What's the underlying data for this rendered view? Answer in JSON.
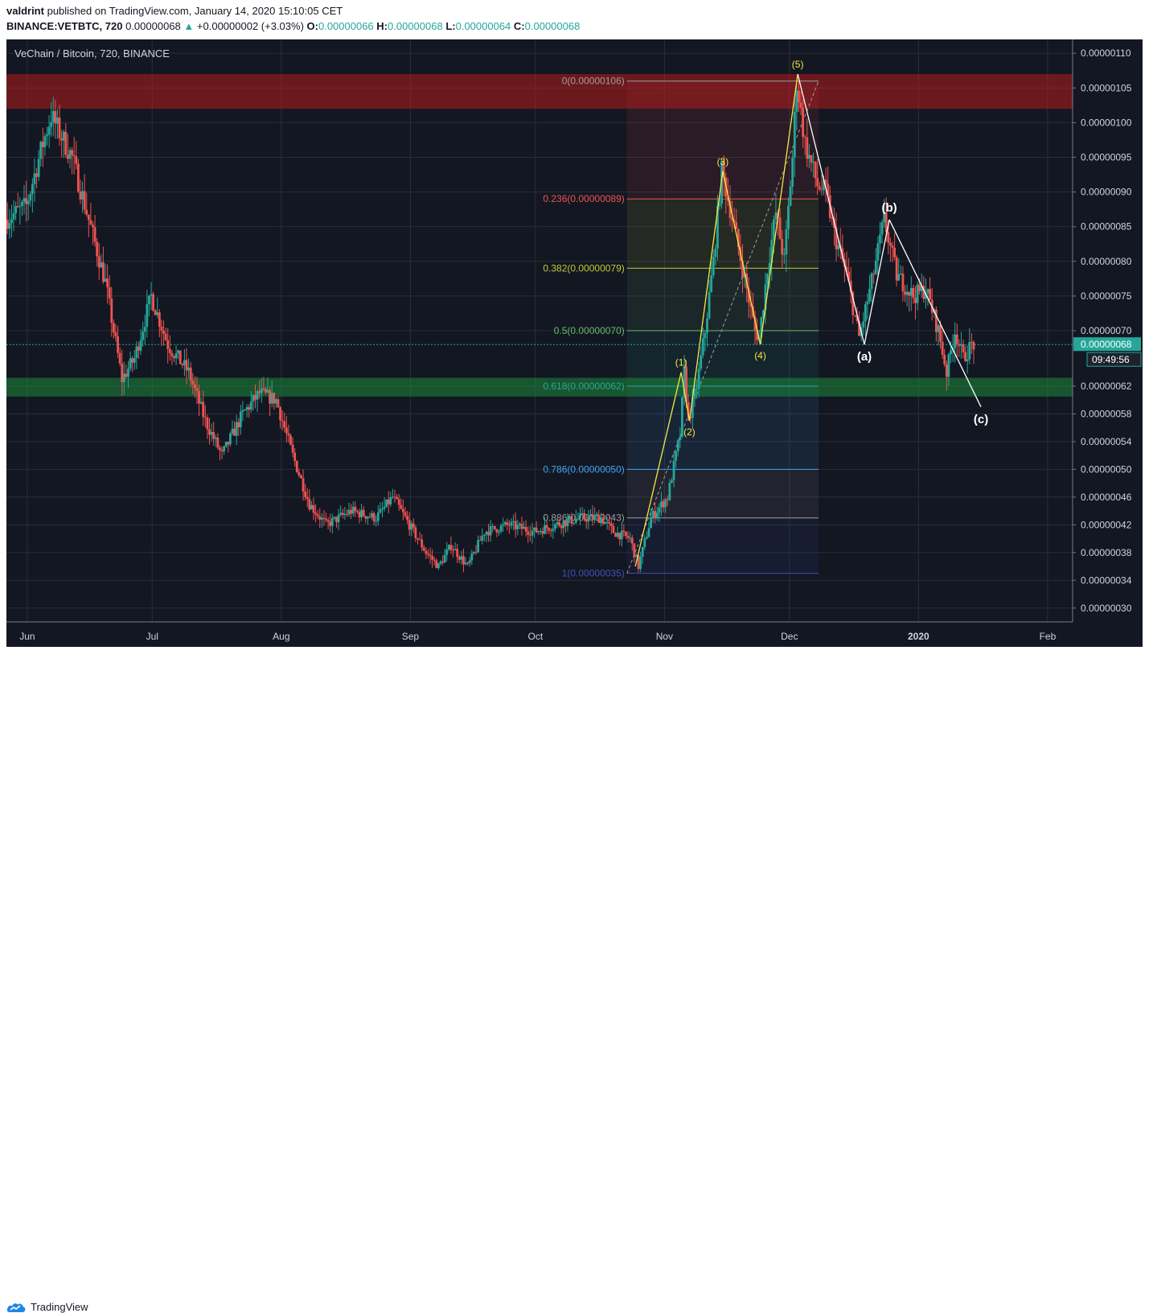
{
  "header": {
    "publisher": "valdrint",
    "published_text": "published on TradingView.com, January 14, 2020 15:10:05 CET",
    "symbol_line": "BINANCE:VETBTC, 720",
    "last": "0.00000068",
    "change": "+0.00000002 (+3.03%)",
    "o_label": "O:",
    "o_value": "0.00000066",
    "h_label": "H:",
    "h_value": "0.00000068",
    "l_label": "L:",
    "l_value": "0.00000064",
    "c_label": "C:",
    "c_value": "0.00000068"
  },
  "footer": {
    "brand": "TradingView"
  },
  "colors": {
    "background": "#131722",
    "grid": "#2a2e39",
    "up": "#26a69a",
    "down": "#ef5350",
    "resistance_zone": "#b71c1c",
    "support_zone": "#1b8a3a",
    "wave_lines": "#f5e942",
    "abc_lines": "#ffffff"
  },
  "chart_data": {
    "type": "candlestick",
    "title": "VeChain / Bitcoin, 720, BINANCE",
    "x_tick_labels": [
      "Jun",
      "Jul",
      "Aug",
      "Sep",
      "Oct",
      "Nov",
      "Dec",
      "2020",
      "Feb"
    ],
    "x_ticks": [
      "2019-06-01",
      "2019-07-01",
      "2019-08-01",
      "2019-09-01",
      "2019-10-01",
      "2019-11-01",
      "2019-12-01",
      "2020-01-01",
      "2020-02-01"
    ],
    "x_range": [
      "2019-05-27",
      "2020-02-07"
    ],
    "ylim": [
      2.8e-07,
      1.12e-06
    ],
    "y_tick_labels": [
      "0.00000110",
      "0.00000105",
      "0.00000100",
      "0.00000095",
      "0.00000090",
      "0.00000085",
      "0.00000080",
      "0.00000075",
      "0.00000070",
      "0.00000062",
      "0.00000058",
      "0.00000054",
      "0.00000050",
      "0.00000046",
      "0.00000042",
      "0.00000038",
      "0.00000034",
      "0.00000030"
    ],
    "y_ticks": [
      1.1e-06,
      1.05e-06,
      1e-06,
      9.5e-07,
      9e-07,
      8.5e-07,
      8e-07,
      7.5e-07,
      7e-07,
      6.2e-07,
      5.8e-07,
      5.4e-07,
      5e-07,
      4.6e-07,
      4.2e-07,
      3.8e-07,
      3.4e-07,
      3e-07
    ],
    "last_price": {
      "value": 6.8e-07,
      "label": "0.00000068",
      "countdown": "09:49:56"
    },
    "price_path": [
      [
        "2019-05-27",
        8.6e-07
      ],
      [
        "2019-06-01",
        8.8e-07
      ],
      [
        "2019-06-05",
        9.7e-07
      ],
      [
        "2019-06-07",
        1.01e-06
      ],
      [
        "2019-06-12",
        9.5e-07
      ],
      [
        "2019-06-16",
        8.6e-07
      ],
      [
        "2019-06-20",
        7.7e-07
      ],
      [
        "2019-06-24",
        6.3e-07
      ],
      [
        "2019-06-27",
        6.6e-07
      ],
      [
        "2019-07-01",
        7.5e-07
      ],
      [
        "2019-07-05",
        6.8e-07
      ],
      [
        "2019-07-10",
        6.4e-07
      ],
      [
        "2019-07-14",
        5.7e-07
      ],
      [
        "2019-07-18",
        5.2e-07
      ],
      [
        "2019-07-23",
        5.8e-07
      ],
      [
        "2019-07-27",
        6.1e-07
      ],
      [
        "2019-07-31",
        6e-07
      ],
      [
        "2019-08-04",
        5.2e-07
      ],
      [
        "2019-08-08",
        4.5e-07
      ],
      [
        "2019-08-12",
        4.2e-07
      ],
      [
        "2019-08-18",
        4.4e-07
      ],
      [
        "2019-08-24",
        4.3e-07
      ],
      [
        "2019-08-28",
        4.6e-07
      ],
      [
        "2019-09-01",
        4.2e-07
      ],
      [
        "2019-09-05",
        3.8e-07
      ],
      [
        "2019-09-08",
        3.6e-07
      ],
      [
        "2019-09-11",
        3.9e-07
      ],
      [
        "2019-09-15",
        3.6e-07
      ],
      [
        "2019-09-19",
        4.1e-07
      ],
      [
        "2019-09-25",
        4.2e-07
      ],
      [
        "2019-10-01",
        4.1e-07
      ],
      [
        "2019-10-06",
        4.2e-07
      ],
      [
        "2019-10-12",
        4.3e-07
      ],
      [
        "2019-10-17",
        4.3e-07
      ],
      [
        "2019-10-20",
        4.1e-07
      ],
      [
        "2019-10-24",
        4e-07
      ],
      [
        "2019-10-26",
        3.6e-07
      ],
      [
        "2019-10-29",
        4.3e-07
      ],
      [
        "2019-11-02",
        4.6e-07
      ],
      [
        "2019-11-05",
        5.5e-07
      ],
      [
        "2019-11-06",
        6.4e-07
      ],
      [
        "2019-11-07",
        5.7e-07
      ],
      [
        "2019-11-09",
        6.2e-07
      ],
      [
        "2019-11-11",
        7e-07
      ],
      [
        "2019-11-13",
        8e-07
      ],
      [
        "2019-11-15",
        9.3e-07
      ],
      [
        "2019-11-18",
        8.5e-07
      ],
      [
        "2019-11-20",
        7.9e-07
      ],
      [
        "2019-11-23",
        7e-07
      ],
      [
        "2019-11-24",
        6.9e-07
      ],
      [
        "2019-11-26",
        7.9e-07
      ],
      [
        "2019-11-28",
        8.7e-07
      ],
      [
        "2019-11-30",
        8e-07
      ],
      [
        "2019-12-02",
        9.5e-07
      ],
      [
        "2019-12-03",
        1.06e-06
      ],
      [
        "2019-12-05",
        9.7e-07
      ],
      [
        "2019-12-08",
        9.1e-07
      ],
      [
        "2019-12-10",
        9e-07
      ],
      [
        "2019-12-12",
        8.4e-07
      ],
      [
        "2019-12-15",
        7.8e-07
      ],
      [
        "2019-12-18",
        6.9e-07
      ],
      [
        "2019-12-21",
        7.7e-07
      ],
      [
        "2019-12-24",
        8.6e-07
      ],
      [
        "2019-12-27",
        7.8e-07
      ],
      [
        "2019-12-31",
        7.5e-07
      ],
      [
        "2020-01-03",
        7.6e-07
      ],
      [
        "2020-01-06",
        7e-07
      ],
      [
        "2020-01-08",
        6.4e-07
      ],
      [
        "2020-01-10",
        7e-07
      ],
      [
        "2020-01-12",
        6.6e-07
      ],
      [
        "2020-01-14",
        6.8e-07
      ]
    ],
    "fib_retracement": {
      "from_date": "2019-10-23",
      "to_date": "2019-12-08",
      "levels": [
        {
          "label": "0(0.00000106)",
          "price": 1.06e-06,
          "color": "#9e9e9e"
        },
        {
          "label": "0.236(0.00000089)",
          "price": 8.9e-07,
          "color": "#ef5350"
        },
        {
          "label": "0.382(0.00000079)",
          "price": 7.9e-07,
          "color": "#c0ca33"
        },
        {
          "label": "0.5(0.00000070)",
          "price": 7e-07,
          "color": "#66bb6a"
        },
        {
          "label": "0.618(0.00000062)",
          "price": 6.2e-07,
          "color": "#26a69a"
        },
        {
          "label": "0.786(0.00000050)",
          "price": 5e-07,
          "color": "#42a5f5"
        },
        {
          "label": "0.886(0.00000043)",
          "price": 4.3e-07,
          "color": "#9e9e9e"
        },
        {
          "label": "1(0.00000035)",
          "price": 3.5e-07,
          "color": "#3f51b5"
        }
      ]
    },
    "zones": [
      {
        "name": "resistance",
        "from": 1.02e-06,
        "to": 1.07e-06
      },
      {
        "name": "support",
        "from": 6.05e-07,
        "to": 6.32e-07
      }
    ],
    "impulse_wave": {
      "labels": [
        "(1)",
        "(2)",
        "(3)",
        "(4)",
        "(5)"
      ],
      "points": [
        [
          "2019-10-25",
          3.6e-07
        ],
        [
          "2019-11-05",
          6.4e-07
        ],
        [
          "2019-11-07",
          5.7e-07
        ],
        [
          "2019-11-15",
          9.3e-07
        ],
        [
          "2019-11-24",
          6.8e-07
        ],
        [
          "2019-12-03",
          1.07e-06
        ]
      ]
    },
    "corrective_wave": {
      "labels": [
        "(a)",
        "(b)",
        "(c)"
      ],
      "points": [
        [
          "2019-12-03",
          1.07e-06
        ],
        [
          "2019-12-19",
          6.8e-07
        ],
        [
          "2019-12-25",
          8.6e-07
        ],
        [
          "2020-01-16",
          5.9e-07
        ]
      ]
    }
  }
}
